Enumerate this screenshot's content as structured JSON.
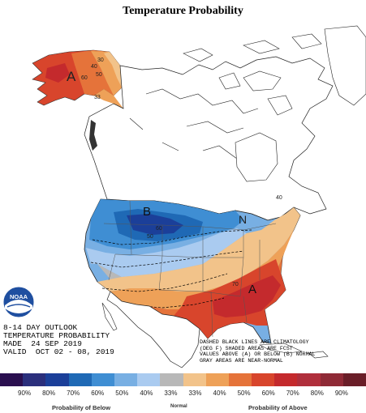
{
  "header": {
    "title": "Temperature Probability"
  },
  "outlook": {
    "line1": "8-14 DAY OUTLOOK",
    "line2": "TEMPERATURE PROBABILITY",
    "line3": "MADE  24 SEP 2019",
    "line4": "VALID  OCT 02 - 08, 2019"
  },
  "note": {
    "line1": "DASHED BLACK LINES ARE CLIMATOLOGY",
    "line2": "(DEG F) SHADED AREAS ARE FCST",
    "line3": "VALUES ABOVE (A) OR BELOW (B) NORMAL",
    "line4": "GRAY AREAS ARE NEAR-NORMAL"
  },
  "logo": {
    "text": "NOAA",
    "icon": "noaa-logo"
  },
  "legend": {
    "ticks": [
      "90%",
      "80%",
      "70%",
      "60%",
      "50%",
      "40%",
      "33%",
      "33%",
      "40%",
      "50%",
      "60%",
      "70%",
      "80%",
      "90%"
    ],
    "colors": [
      "#2a0f4f",
      "#2b2f7c",
      "#1b3f99",
      "#1f69b5",
      "#3f8ed3",
      "#78afe3",
      "#aacbf0",
      "#b8b8b8",
      "#f2c38a",
      "#eea158",
      "#e5733a",
      "#d8452c",
      "#c42a2d",
      "#b02f3c",
      "#8f2a36",
      "#6a1e28"
    ],
    "below_label": "Probability of Below",
    "normal_label": "Normal",
    "above_label": "Probability of Above"
  },
  "map": {
    "labels": {
      "A_alaska": "A",
      "B_north": "B",
      "N_east": "N",
      "A_southeast": "A",
      "c30": "30",
      "c40": "40",
      "c50": "50",
      "c60": "60",
      "c33": "33",
      "c40b": "40",
      "c50b": "50",
      "c60b": "60",
      "c70": "70"
    }
  }
}
